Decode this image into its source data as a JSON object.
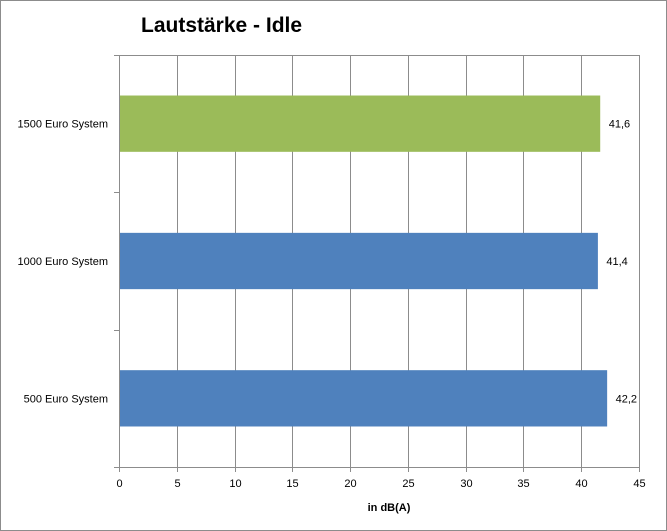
{
  "chart_data": {
    "type": "bar",
    "orientation": "horizontal",
    "title": "Lautstärke - Idle",
    "xlabel": "in dB(A)",
    "ylabel": "",
    "categories": [
      "1500 Euro System",
      "1000 Euro System",
      "500 Euro System"
    ],
    "values": [
      41.6,
      41.4,
      42.2
    ],
    "data_labels": [
      "41,6",
      "41,4",
      "42,2"
    ],
    "bar_colors": [
      "#9BBB59",
      "#4F81BD",
      "#4F81BD"
    ],
    "xlim": [
      0,
      45
    ],
    "xticks": [
      0,
      5,
      10,
      15,
      20,
      25,
      30,
      35,
      40,
      45
    ],
    "xtick_labels": [
      "0",
      "5",
      "10",
      "15",
      "20",
      "25",
      "30",
      "35",
      "40",
      "45"
    ],
    "grid": true,
    "legend": "none"
  }
}
